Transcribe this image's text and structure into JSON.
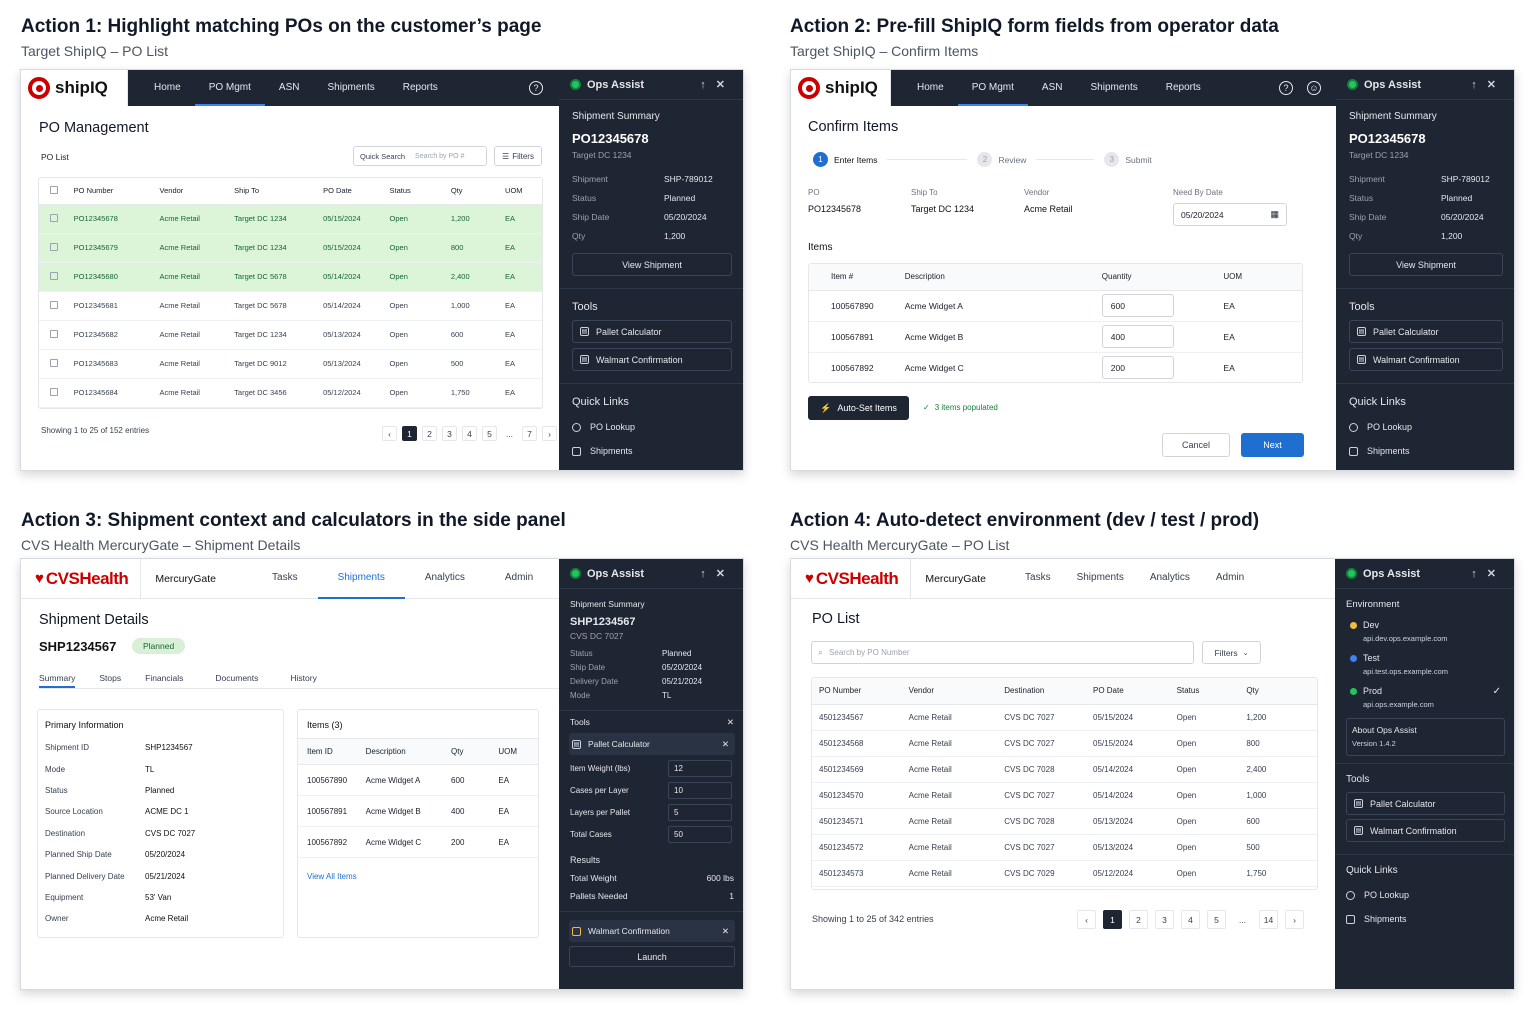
{
  "a1": {
    "title": "Action 1: Highlight matching POs on the customer’s page",
    "subtitle": "Target ShipIQ – PO List",
    "logo": "shipIQ",
    "nav": [
      "Home",
      "PO Mgmt",
      "ASN",
      "Shipments",
      "Reports"
    ],
    "page_title": "PO Management",
    "list_label": "PO List",
    "quick_search": "Quick Search",
    "search_placeholder": "Search by PO #",
    "filters": "Filters",
    "columns": [
      "PO Number",
      "Vendor",
      "Ship To",
      "PO Date",
      "Status",
      "Qty",
      "UOM"
    ],
    "rows": [
      [
        "PO12345678",
        "Acme Retail",
        "Target DC 1234",
        "05/15/2024",
        "Open",
        "1,200",
        "EA"
      ],
      [
        "PO12345679",
        "Acme Retail",
        "Target DC 1234",
        "05/15/2024",
        "Open",
        "800",
        "EA"
      ],
      [
        "PO12345680",
        "Acme Retail",
        "Target DC 5678",
        "05/14/2024",
        "Open",
        "2,400",
        "EA"
      ],
      [
        "PO12345681",
        "Acme Retail",
        "Target DC 5678",
        "05/14/2024",
        "Open",
        "1,000",
        "EA"
      ],
      [
        "PO12345682",
        "Acme Retail",
        "Target DC 1234",
        "05/13/2024",
        "Open",
        "600",
        "EA"
      ],
      [
        "PO12345683",
        "Acme Retail",
        "Target DC 9012",
        "05/13/2024",
        "Open",
        "500",
        "EA"
      ],
      [
        "PO12345684",
        "Acme Retail",
        "Target DC 3456",
        "05/12/2024",
        "Open",
        "1,750",
        "EA"
      ]
    ],
    "highlight_color": "#dcf5d9",
    "showing": "Showing 1 to 25 of 152 entries",
    "pages": [
      "‹",
      "1",
      "2",
      "3",
      "4",
      "5",
      "...",
      "7",
      "›"
    ]
  },
  "a2": {
    "title": "Action 2: Pre-fill ShipIQ form fields from operator data",
    "subtitle": "Target ShipIQ – Confirm Items",
    "logo": "shipIQ",
    "nav": [
      "Home",
      "PO Mgmt",
      "ASN",
      "Shipments",
      "Reports"
    ],
    "page_title": "Confirm Items",
    "steps": [
      "Enter Items",
      "Review",
      "Submit"
    ],
    "fields": [
      {
        "label": "PO",
        "value": "PO12345678"
      },
      {
        "label": "Ship To",
        "value": "Target DC 1234"
      },
      {
        "label": "Vendor",
        "value": "Acme Retail"
      },
      {
        "label": "Need By Date",
        "value": "05/20/2024"
      }
    ],
    "items_label": "Items",
    "columns": [
      "Item #",
      "Description",
      "Quantity",
      "UOM"
    ],
    "rows": [
      [
        "100567890",
        "Acme Widget A",
        "600",
        "EA"
      ],
      [
        "100567891",
        "Acme Widget B",
        "400",
        "EA"
      ],
      [
        "100567892",
        "Acme Widget C",
        "200",
        "EA"
      ]
    ],
    "auto_set": "Auto-Set Items",
    "populated": "3 items populated",
    "cancel": "Cancel",
    "next": "Next"
  },
  "a3": {
    "title": "Action 3: Shipment context and calculators in the side panel",
    "subtitle": "CVS Health MercuryGate – Shipment Details",
    "logo": "CVSHealth",
    "app": "MercuryGate",
    "nav": [
      "Tasks",
      "Shipments",
      "Analytics",
      "Admin"
    ],
    "page_title": "Shipment Details",
    "shipment_id": "SHP1234567",
    "badge": "Planned",
    "tabs": [
      "Summary",
      "Stops",
      "Financials",
      "Documents",
      "History"
    ],
    "primary_title": "Primary Information",
    "primary": [
      [
        "Shipment ID",
        "SHP1234567"
      ],
      [
        "Mode",
        "TL"
      ],
      [
        "Status",
        "Planned"
      ],
      [
        "Source Location",
        "ACME DC 1"
      ],
      [
        "Destination",
        "CVS DC 7027"
      ],
      [
        "Planned Ship Date",
        "05/20/2024"
      ],
      [
        "Planned Delivery Date",
        "05/21/2024"
      ],
      [
        "Equipment",
        "53' Van"
      ],
      [
        "Owner",
        "Acme Retail"
      ]
    ],
    "items_title": "Items (3)",
    "item_columns": [
      "Item ID",
      "Description",
      "Qty",
      "UOM"
    ],
    "items": [
      [
        "100567890",
        "Acme Widget A",
        "600",
        "EA"
      ],
      [
        "100567891",
        "Acme Widget B",
        "400",
        "EA"
      ],
      [
        "100567892",
        "Acme Widget C",
        "200",
        "EA"
      ]
    ],
    "view_all": "View All Items"
  },
  "a4": {
    "title": "Action 4: Auto-detect environment (dev / test / prod)",
    "subtitle": "CVS Health MercuryGate – PO List",
    "logo": "CVSHealth",
    "app": "MercuryGate",
    "nav": [
      "Tasks",
      "Shipments",
      "Analytics",
      "Admin"
    ],
    "page_title": "PO List",
    "search_placeholder": "Search by PO Number",
    "filters": "Filters",
    "columns": [
      "PO Number",
      "Vendor",
      "Destination",
      "PO Date",
      "Status",
      "Qty"
    ],
    "rows": [
      [
        "4501234567",
        "Acme Retail",
        "CVS DC 7027",
        "05/15/2024",
        "Open",
        "1,200"
      ],
      [
        "4501234568",
        "Acme Retail",
        "CVS DC 7027",
        "05/15/2024",
        "Open",
        "800"
      ],
      [
        "4501234569",
        "Acme Retail",
        "CVS DC 7028",
        "05/14/2024",
        "Open",
        "2,400"
      ],
      [
        "4501234570",
        "Acme Retail",
        "CVS DC 7027",
        "05/14/2024",
        "Open",
        "1,000"
      ],
      [
        "4501234571",
        "Acme Retail",
        "CVS DC 7028",
        "05/13/2024",
        "Open",
        "600"
      ],
      [
        "4501234572",
        "Acme Retail",
        "CVS DC 7027",
        "05/13/2024",
        "Open",
        "500"
      ],
      [
        "4501234573",
        "Acme Retail",
        "CVS DC 7029",
        "05/12/2024",
        "Open",
        "1,750"
      ]
    ],
    "showing": "Showing 1 to 25 of 342 entries",
    "pages": [
      "‹",
      "1",
      "2",
      "3",
      "4",
      "5",
      "...",
      "14",
      "›"
    ]
  },
  "ops": {
    "title": "Ops Assist",
    "summary_title": "Shipment Summary",
    "po": "PO12345678",
    "dest": "Target DC 1234",
    "kv": [
      [
        "Shipment",
        "SHP-789012"
      ],
      [
        "Status",
        "Planned"
      ],
      [
        "Ship Date",
        "05/20/2024"
      ],
      [
        "Qty",
        "1,200"
      ]
    ],
    "view_shipment": "View Shipment",
    "tools": "Tools",
    "tool_items": [
      "Pallet Calculator",
      "Walmart Confirmation"
    ],
    "quick_links": "Quick Links",
    "links": [
      "PO Lookup",
      "Shipments"
    ]
  },
  "ops3": {
    "summary_title": "Shipment Summary",
    "id": "SHP1234567",
    "dest": "CVS DC 7027",
    "kv": [
      [
        "Status",
        "Planned"
      ],
      [
        "Ship Date",
        "05/20/2024"
      ],
      [
        "Delivery Date",
        "05/21/2024"
      ],
      [
        "Mode",
        "TL"
      ]
    ],
    "tools": "Tools",
    "calc_title": "Pallet Calculator",
    "calc": [
      [
        "Item Weight (lbs)",
        "12"
      ],
      [
        "Cases per Layer",
        "10"
      ],
      [
        "Layers per Pallet",
        "5"
      ],
      [
        "Total Cases",
        "50"
      ]
    ],
    "results": "Results",
    "res": [
      [
        "Total Weight",
        "600 lbs"
      ],
      [
        "Pallets Needed",
        "1"
      ]
    ],
    "walmart": "Walmart Confirmation",
    "launch": "Launch"
  },
  "ops4": {
    "environment": "Environment",
    "envs": [
      {
        "name": "Dev",
        "url": "api.dev.ops.example.com",
        "color": "#f5b942"
      },
      {
        "name": "Test",
        "url": "api.test.ops.example.com",
        "color": "#3b82f6"
      },
      {
        "name": "Prod",
        "url": "api.ops.example.com",
        "color": "#22c55e"
      }
    ],
    "about": "About Ops Assist",
    "version": "Version 1.4.2"
  }
}
